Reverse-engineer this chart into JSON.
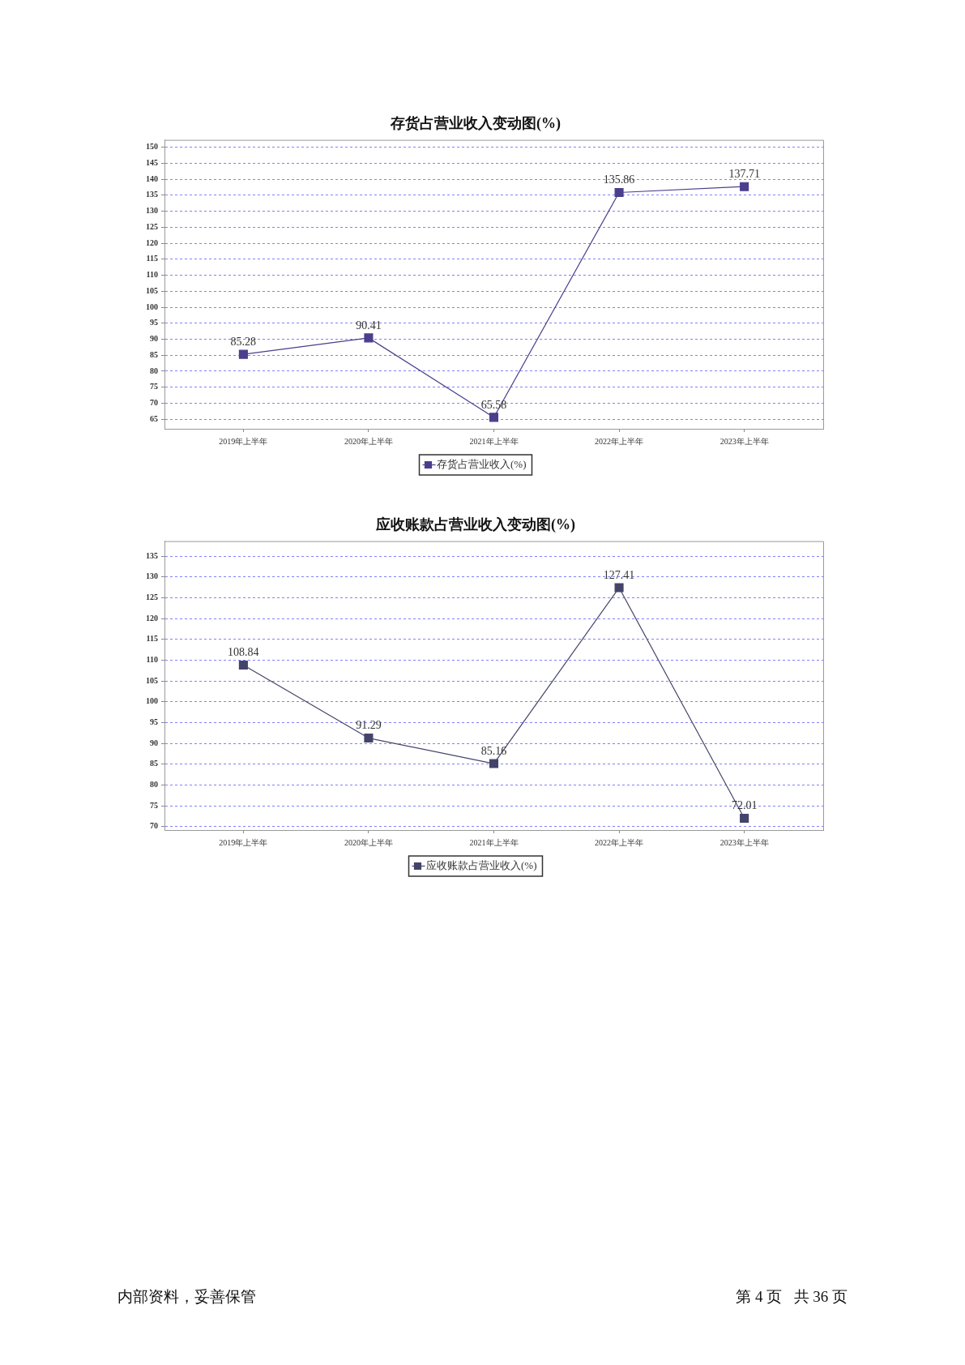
{
  "chart_data": [
    {
      "type": "line",
      "title": "存货占营业收入变动图(%)",
      "categories": [
        "2019年上半年",
        "2020年上半年",
        "2021年上半年",
        "2022年上半年",
        "2023年上半年"
      ],
      "series": [
        {
          "name": "存货占营业收入(%)",
          "color": "#4a3f8c",
          "values": [
            85.28,
            90.41,
            65.58,
            135.86,
            137.71
          ]
        }
      ],
      "ylim": [
        62,
        152.3
      ],
      "yticks": [
        65,
        70,
        75,
        80,
        85,
        90,
        95,
        100,
        105,
        110,
        115,
        120,
        125,
        130,
        135,
        140,
        145,
        150
      ],
      "grid": "y",
      "legend": "bottom",
      "marker": "square",
      "data_labels": true
    },
    {
      "type": "line",
      "title": "应收账款占营业收入变动图(%)",
      "categories": [
        "2019年上半年",
        "2020年上半年",
        "2021年上半年",
        "2022年上半年",
        "2023年上半年"
      ],
      "series": [
        {
          "name": "应收账款占营业收入(%)",
          "color": "#44446a",
          "values": [
            108.84,
            91.29,
            85.16,
            127.41,
            72.01
          ]
        }
      ],
      "ylim": [
        69.2,
        138.6
      ],
      "yticks": [
        70,
        75,
        80,
        85,
        90,
        95,
        100,
        105,
        110,
        115,
        120,
        125,
        130,
        135
      ],
      "grid": "y",
      "legend": "bottom",
      "marker": "square",
      "data_labels": true,
      "annotations": [
        "内部资料，妥善保管",
        "第 4 页   共 36 页"
      ]
    }
  ]
}
